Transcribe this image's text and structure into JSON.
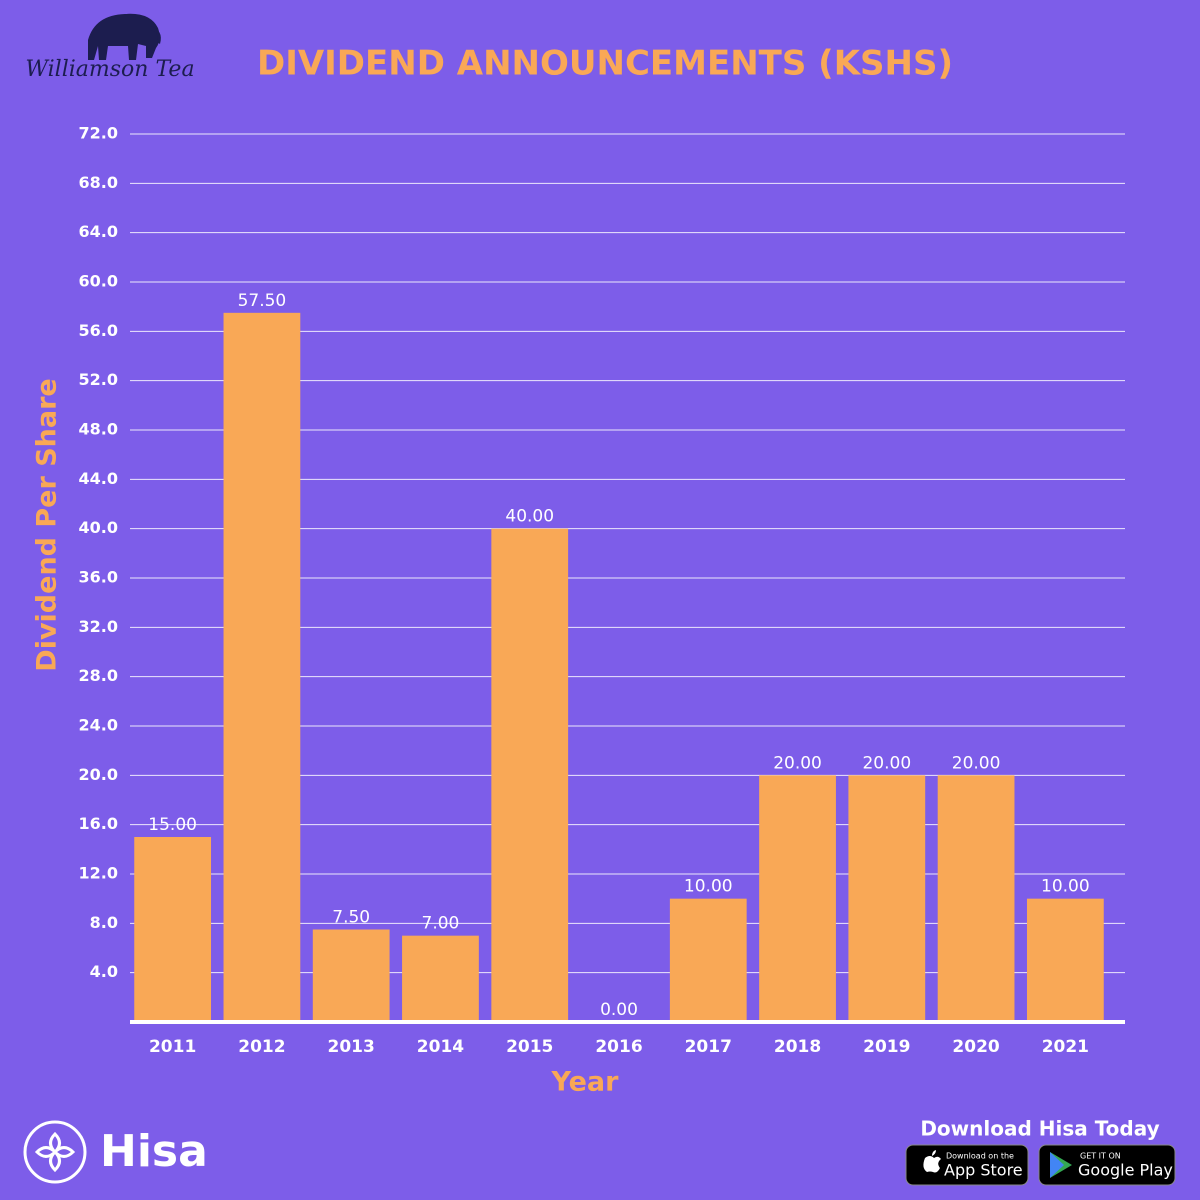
{
  "chart_data": {
    "type": "bar",
    "title": "DIVIDEND ANNOUNCEMENTS (KSHS)",
    "x_label": "Year",
    "y_label": "Dividend Per Share",
    "categories": [
      "2011",
      "2012",
      "2013",
      "2014",
      "2015",
      "2016",
      "2017",
      "2018",
      "2019",
      "2020",
      "2021"
    ],
    "values": [
      15,
      57.5,
      7.5,
      7,
      40,
      0,
      10,
      20,
      20,
      20,
      10
    ],
    "value_labels": [
      "15.00",
      "57.50",
      "7.50",
      "7.00",
      "40.00",
      "0.00",
      "10.00",
      "20.00",
      "20.00",
      "20.00",
      "10.00"
    ],
    "color": "#f9a856",
    "ylim": [
      0,
      72
    ],
    "yticks": [
      {
        "value": 4,
        "label": "4.0"
      },
      {
        "value": 8,
        "label": "8.0"
      },
      {
        "value": 12,
        "label": "12.0"
      },
      {
        "value": 16,
        "label": "16.0"
      },
      {
        "value": 20,
        "label": "20.0"
      },
      {
        "value": 24,
        "label": "24.0"
      },
      {
        "value": 28,
        "label": "28.0"
      },
      {
        "value": 32,
        "label": "32.0"
      },
      {
        "value": 36,
        "label": "36.0"
      },
      {
        "value": 40,
        "label": "40.0"
      },
      {
        "value": 44,
        "label": "44.0"
      },
      {
        "value": 48,
        "label": "48.0"
      },
      {
        "value": 52,
        "label": "52.0"
      },
      {
        "value": 56,
        "label": "56.0"
      },
      {
        "value": 60,
        "label": "60.0"
      },
      {
        "value": 64,
        "label": "64.0"
      },
      {
        "value": 68,
        "label": "68.0"
      },
      {
        "value": 72,
        "label": "72.0"
      }
    ],
    "grid": true
  },
  "branding": {
    "company": "Williamson Tea",
    "brand": "Hisa",
    "download": "Download Hisa Today",
    "app_store_small": "Download on the",
    "app_store": "App Store",
    "google_small": "GET IT ON",
    "google": "Google Play"
  }
}
